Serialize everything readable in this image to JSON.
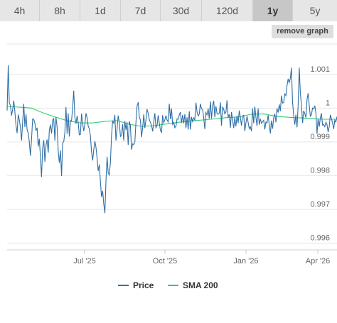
{
  "tabs": [
    {
      "label": "4h",
      "active": false
    },
    {
      "label": "8h",
      "active": false
    },
    {
      "label": "1d",
      "active": false
    },
    {
      "label": "7d",
      "active": false
    },
    {
      "label": "30d",
      "active": false
    },
    {
      "label": "120d",
      "active": false
    },
    {
      "label": "1y",
      "active": true
    },
    {
      "label": "5y",
      "active": false
    }
  ],
  "remove_graph_label": "remove graph",
  "chart_data": {
    "type": "line",
    "title": "",
    "xlabel": "",
    "ylabel": "",
    "x_ticks": [
      "Jul '25",
      "Oct '25",
      "Jan '26",
      "Apr '26"
    ],
    "y_ticks": [
      "1.001",
      "1",
      "0.999",
      "0.998",
      "0.997",
      "0.996"
    ],
    "ylim": [
      0.9958,
      1.0019
    ],
    "grid": "horizontal",
    "legend_position": "bottom-center",
    "series": [
      {
        "name": "Price",
        "color": "#2f6fa5",
        "values": [
          0.99993,
          1.00127,
          1.00015,
          1.00008,
          0.99978,
          0.99996,
          1.00022,
          0.9999,
          0.99949,
          0.99926,
          0.99981,
          0.99965,
          0.99943,
          0.99904,
          0.9996,
          1.00013,
          0.99944,
          0.99982,
          0.99936,
          0.99926,
          0.99901,
          0.99859,
          0.99909,
          0.99968,
          0.99967,
          0.99955,
          0.99933,
          0.99942,
          0.99886,
          0.99909,
          0.99855,
          0.99796,
          0.99883,
          0.99905,
          0.99841,
          0.99889,
          0.99907,
          0.99868,
          0.99934,
          0.99951,
          0.99925,
          0.99965,
          0.99969,
          0.99904,
          0.99973,
          0.99945,
          0.99872,
          0.99838,
          0.99875,
          0.99799,
          0.99897,
          0.99901,
          0.99927,
          1.00003,
          0.99924,
          0.99985,
          0.99916,
          0.99963,
          0.99962,
          1.00002,
          1.00052,
          0.99973,
          0.99954,
          0.99977,
          0.99958,
          0.99921,
          0.99922,
          0.99984,
          0.99956,
          0.99932,
          0.99952,
          0.99985,
          0.99971,
          0.99947,
          0.99939,
          0.99917,
          0.99872,
          0.99845,
          0.99877,
          0.99902,
          0.99884,
          0.99853,
          0.99814,
          0.99833,
          0.99783,
          0.99737,
          0.99755,
          0.99717,
          0.99689,
          0.99782,
          0.99856,
          0.99808,
          0.99802,
          0.99839,
          0.9992,
          0.99961,
          0.99955,
          0.9998,
          0.99904,
          0.99939,
          0.99978,
          0.99957,
          0.99916,
          0.99919,
          0.99952,
          0.99904,
          0.99962,
          0.99935,
          0.99958,
          0.99891,
          0.99961,
          0.99949,
          0.99877,
          0.99894,
          0.99892,
          0.99901,
          0.99958,
          1.00007,
          1.00017,
          0.99974,
          0.99965,
          0.99914,
          0.99941,
          0.99982,
          0.99941,
          0.99965,
          0.99997,
          0.99985,
          0.99966,
          0.99958,
          0.9995,
          0.99931,
          0.99957,
          0.99985,
          0.99942,
          0.99948,
          0.99979,
          0.99957,
          0.99935,
          0.99927,
          0.99979,
          0.99957,
          0.99965,
          0.99978,
          0.99965,
          0.99959,
          1.00013,
          0.99967,
          0.99999,
          0.99952,
          0.99958,
          0.99942,
          0.99947,
          0.99968,
          0.99967,
          0.9998,
          0.99988,
          0.99956,
          0.9998,
          0.99955,
          0.99982,
          0.99941,
          0.99973,
          0.99937,
          0.99991,
          0.99937,
          0.99974,
          0.9996,
          0.99971,
          0.99965,
          1.00016,
          0.99988,
          0.99977,
          0.99983,
          1.00013,
          0.99998,
          0.99996,
          0.99972,
          0.99938,
          0.99987,
          0.9998,
          0.99999,
          0.99969,
          1.0002,
          0.99969,
          1.00006,
          1.00022,
          0.99973,
          1.00006,
          0.99984,
          0.99982,
          0.99985,
          1.00017,
          0.99948,
          1.00004,
          0.99997,
          0.99983,
          0.99989,
          1.00023,
          0.99973,
          0.99982,
          0.99942,
          0.99988,
          0.99965,
          0.99941,
          0.99973,
          0.99946,
          0.99978,
          0.99955,
          0.99993,
          0.99973,
          0.99948,
          0.99977,
          0.99979,
          0.99932,
          0.99956,
          0.99976,
          0.99958,
          0.99939,
          0.99945,
          0.99932,
          0.99999,
          0.99955,
          1.00005,
          0.99972,
          0.99947,
          0.99999,
          0.99951,
          0.99968,
          0.99955,
          0.9996,
          0.99964,
          0.99937,
          0.99959,
          0.99956,
          0.99979,
          0.99951,
          0.99925,
          0.99963,
          0.99939,
          0.99971,
          0.99983,
          0.99958,
          0.99999,
          0.99987,
          1.00011,
          0.99991,
          1.00037,
          1.00015,
          1.00016,
          1.00042,
          1.00037,
          1.00067,
          1.00087,
          1.00075,
          1.00089,
          1.0012,
          1.00017,
          0.99979,
          0.99951,
          0.99981,
          0.99943,
          1.00007,
          1.0012,
          1.00045,
          1.00009,
          0.99956,
          0.99992,
          0.99984,
          0.99972,
          1.00025,
          1.00044,
          1.00009,
          0.99976,
          0.99981,
          1.0,
          0.99998,
          1.00007,
          0.99986,
          0.99924,
          0.99969,
          0.99945,
          0.99971,
          0.99985,
          0.9995,
          0.99951,
          0.99945,
          0.99958,
          0.99952,
          0.99929,
          0.99945,
          0.9998,
          0.99969,
          0.99955,
          0.99938,
          0.99964,
          0.99959,
          0.99975
        ]
      },
      {
        "name": "SMA 200",
        "color": "#2ecc71",
        "values": [
          1.00005,
          1.00003,
          1.0,
          0.99985,
          0.99973,
          0.99962,
          0.99956,
          0.99956,
          0.99961,
          0.99963,
          0.99952,
          0.99946,
          0.99948,
          0.99953,
          0.99958,
          0.99962,
          0.99965,
          0.99968,
          0.99972,
          0.99974,
          0.99982,
          0.99983,
          0.99976,
          0.99973,
          0.99971,
          0.99969,
          0.99967,
          0.99967
        ]
      }
    ]
  },
  "legend": [
    {
      "label": "Price",
      "color": "#2f6fa5"
    },
    {
      "label": "SMA 200",
      "color": "#2ecc71"
    }
  ]
}
